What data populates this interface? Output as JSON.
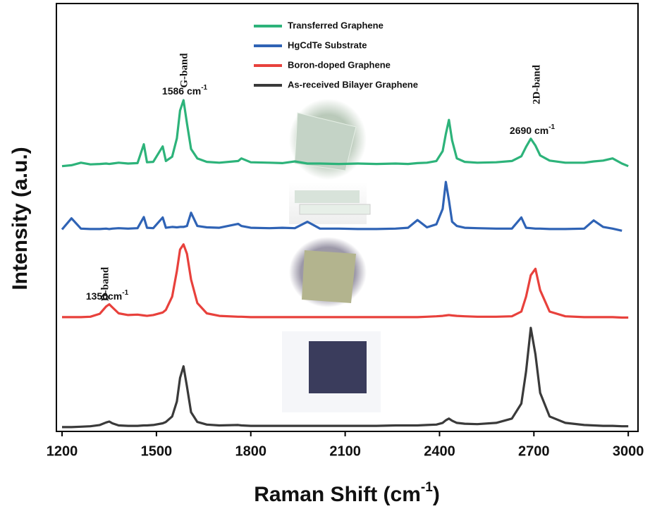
{
  "chart_data": {
    "type": "line",
    "x_label": {
      "text": "Raman Shift (cm",
      "sup": "-1",
      "tail": ")"
    },
    "y_label": "Intensity (a.u.)",
    "xlim": [
      1182,
      3031
    ],
    "ylim": [
      0,
      100
    ],
    "xticks": [
      1200,
      1500,
      1800,
      2100,
      2400,
      2700,
      3000
    ],
    "grid": false,
    "x": [
      1200,
      1230,
      1260,
      1290,
      1320,
      1340,
      1350,
      1360,
      1380,
      1410,
      1440,
      1460,
      1470,
      1490,
      1520,
      1530,
      1550,
      1565,
      1575,
      1586,
      1597,
      1610,
      1630,
      1660,
      1700,
      1760,
      1770,
      1800,
      1860,
      1900,
      1940,
      1980,
      2020,
      2080,
      2140,
      2200,
      2260,
      2300,
      2330,
      2360,
      2390,
      2410,
      2420,
      2430,
      2440,
      2455,
      2480,
      2520,
      2580,
      2630,
      2660,
      2675,
      2690,
      2705,
      2720,
      2750,
      2800,
      2860,
      2890,
      2920,
      2950,
      2980,
      3000
    ],
    "series": [
      {
        "name": "Transferred Graphene",
        "color": "#2db37a",
        "values": [
          62.0,
          62.2,
          62.8,
          62.4,
          62.5,
          62.6,
          62.5,
          62.6,
          62.8,
          62.6,
          62.7,
          67.1,
          62.9,
          63.0,
          66.6,
          63.2,
          64.2,
          68.5,
          75.0,
          77.4,
          72.0,
          66.0,
          63.8,
          63.0,
          62.8,
          63.2,
          63.8,
          62.9,
          62.8,
          62.7,
          63.1,
          62.6,
          62.6,
          62.5,
          62.6,
          62.5,
          62.6,
          62.5,
          62.7,
          62.8,
          63.2,
          65.5,
          69.5,
          72.8,
          68.0,
          63.8,
          63.0,
          62.8,
          62.9,
          63.2,
          64.3,
          66.5,
          68.4,
          66.8,
          64.5,
          63.3,
          62.8,
          62.8,
          63.1,
          63.3,
          63.8,
          62.6,
          62.0
        ]
      },
      {
        "name": "HgCdTe Substrate",
        "color": "#2f63b5",
        "values": [
          47.2,
          49.8,
          47.4,
          47.3,
          47.3,
          47.4,
          47.3,
          47.4,
          47.5,
          47.4,
          47.5,
          50.1,
          47.6,
          47.5,
          50.0,
          47.6,
          47.8,
          47.7,
          47.8,
          47.8,
          48.0,
          51.1,
          48.0,
          47.7,
          47.6,
          48.5,
          48.0,
          47.6,
          47.5,
          47.6,
          47.5,
          49.0,
          47.4,
          47.4,
          47.3,
          47.3,
          47.4,
          47.6,
          49.4,
          47.7,
          48.4,
          52.0,
          58.3,
          54.0,
          49.0,
          48.0,
          47.6,
          47.5,
          47.4,
          47.4,
          50.0,
          47.6,
          47.5,
          47.4,
          47.4,
          47.3,
          47.3,
          47.4,
          49.3,
          47.8,
          47.4,
          46.9,
          null
        ]
      },
      {
        "name": "Boron-doped Graphene",
        "color": "#e8413c",
        "values": [
          26.7,
          26.7,
          26.7,
          26.8,
          27.5,
          29.2,
          29.7,
          29.0,
          27.6,
          27.2,
          27.3,
          27.1,
          27.0,
          27.2,
          27.8,
          28.4,
          31.5,
          37.5,
          42.5,
          43.7,
          41.5,
          35.5,
          30.0,
          27.6,
          27.0,
          26.8,
          26.8,
          26.7,
          26.7,
          26.7,
          26.7,
          26.7,
          26.7,
          26.7,
          26.7,
          26.7,
          26.7,
          26.7,
          26.7,
          26.8,
          26.9,
          27.0,
          27.1,
          27.2,
          27.1,
          27.0,
          26.9,
          26.8,
          26.8,
          26.9,
          28.0,
          31.5,
          36.5,
          38.0,
          33.0,
          28.0,
          26.9,
          26.7,
          26.7,
          26.7,
          26.7,
          26.6,
          26.6
        ]
      },
      {
        "name": "As-received Bilayer Graphene",
        "color": "#3a3a3a",
        "values": [
          1.0,
          1.0,
          1.1,
          1.2,
          1.5,
          2.1,
          2.3,
          1.9,
          1.4,
          1.3,
          1.3,
          1.4,
          1.4,
          1.5,
          1.9,
          2.2,
          3.5,
          7.0,
          12.5,
          15.2,
          10.5,
          4.5,
          2.2,
          1.6,
          1.4,
          1.5,
          1.4,
          1.3,
          1.3,
          1.3,
          1.3,
          1.3,
          1.3,
          1.3,
          1.3,
          1.3,
          1.4,
          1.4,
          1.4,
          1.5,
          1.6,
          2.0,
          2.6,
          3.0,
          2.5,
          2.0,
          1.8,
          1.7,
          2.0,
          3.0,
          6.5,
          14.0,
          24.2,
          18.0,
          9.0,
          3.5,
          2.0,
          1.5,
          1.4,
          1.3,
          1.3,
          1.2,
          1.2
        ]
      }
    ],
    "annotations": [
      {
        "text": "G-band"
      },
      {
        "text": "1586 cm",
        "sup": "-1"
      },
      {
        "text": "2D-band"
      },
      {
        "text": "2690 cm",
        "sup": "-1"
      },
      {
        "text": "D-band"
      },
      {
        "text": "1350cm",
        "sup": "-1"
      }
    ]
  }
}
